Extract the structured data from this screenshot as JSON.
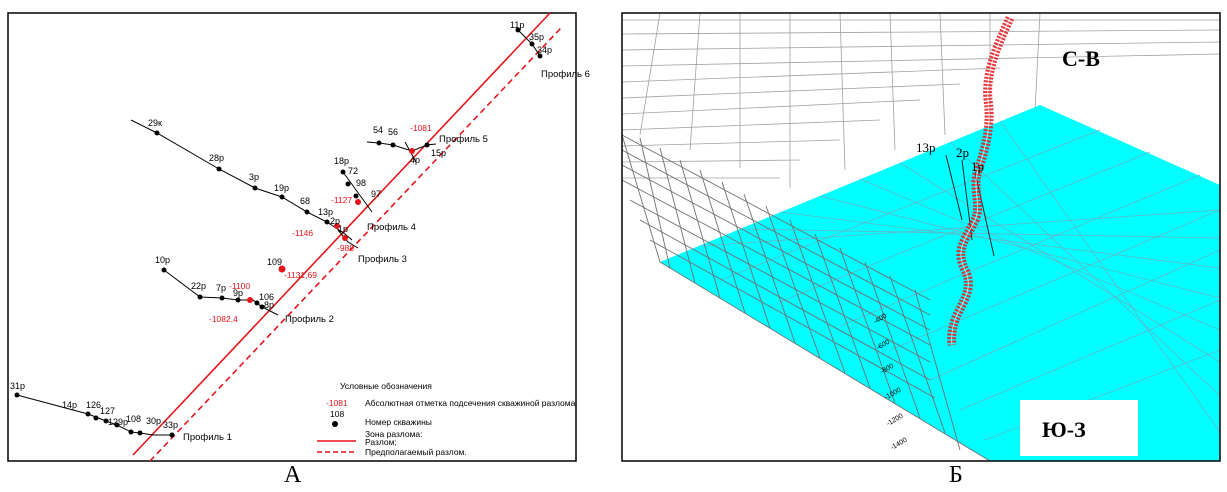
{
  "panel_a": {
    "caption": "А",
    "profiles": [
      "Профиль 1",
      "Профиль 2",
      "Профиль 3",
      "Профиль 4",
      "Профиль 5",
      "Профиль 6"
    ],
    "wells": [
      "11р",
      "35р",
      "34р",
      "29к",
      "28р",
      "3р",
      "19р",
      "68",
      "13р",
      "2р",
      "1р",
      "54",
      "56",
      "4р",
      "15р",
      "18р",
      "72",
      "98",
      "97",
      "10р",
      "22р",
      "7р",
      "9р",
      "106",
      "8р",
      "109",
      "31р",
      "14р",
      "126",
      "127",
      "129р",
      "108",
      "30р",
      "33р"
    ],
    "marks": [
      "-1081",
      "-1127",
      "-1146",
      "-988",
      "-1131,69",
      "-1100",
      "-1082,4"
    ],
    "legend": {
      "title": "Условные обозначения",
      "mark_example": "-1081",
      "mark_text": "Абсолютная отметка подсечения скважиной разлома",
      "well_example": "108",
      "well_text": "Номер скважины",
      "zone_title": "Зона разлома:",
      "fault_text": "Разлом;",
      "assumed_text": "Предполагаемый разлом."
    },
    "colors": {
      "fault": "#e8141a",
      "line": "#000000"
    }
  },
  "panel_b": {
    "caption": "Б",
    "ne_label": "С-В",
    "sw_label": "Ю-З",
    "well_labels": [
      "13р",
      "2р",
      "1р"
    ],
    "depth_ticks": [
      "-400",
      "-600",
      "-800",
      "-1000",
      "-1200",
      "-1400"
    ],
    "colors": {
      "surface": "#00ffff",
      "fault": "#e8141a",
      "grid": "#9a9a9a"
    }
  }
}
